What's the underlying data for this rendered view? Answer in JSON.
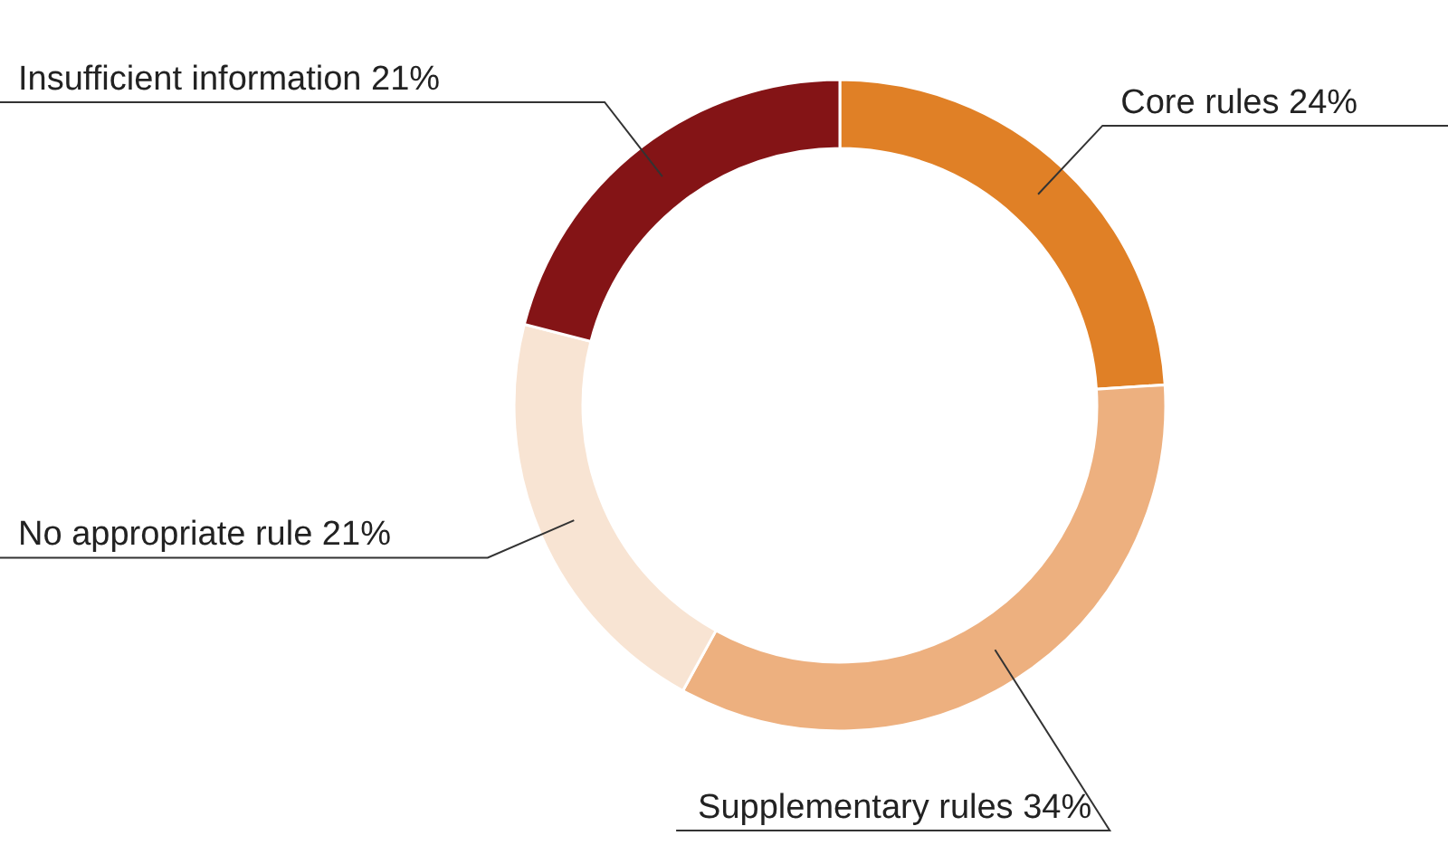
{
  "chart_data": {
    "type": "donut",
    "categories": [
      "Core rules",
      "Supplementary rules",
      "No appropriate rule",
      "Insufficient information"
    ],
    "values": [
      24,
      34,
      21,
      21
    ],
    "value_labels": [
      "24%",
      "34%",
      "21%",
      "21%"
    ],
    "colors": [
      "#e08026",
      "#edb07f",
      "#f8e4d3",
      "#841416"
    ]
  }
}
